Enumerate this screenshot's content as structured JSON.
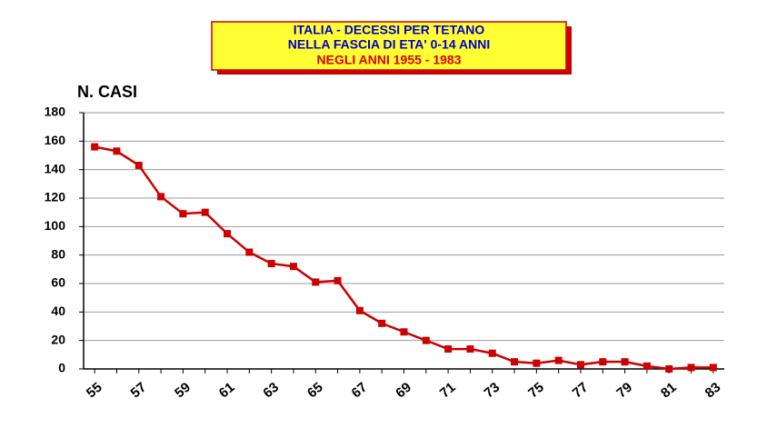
{
  "chart_data": {
    "type": "line",
    "title_lines": [
      "ITALIA - DECESSI PER TETANO",
      "NELLA FASCIA DI ETA' 0-14 ANNI",
      "NEGLI ANNI  1955 - 1983"
    ],
    "y_label": "N. CASI",
    "categories": [
      "55",
      null,
      "57",
      null,
      "59",
      null,
      "61",
      null,
      "63",
      null,
      "65",
      null,
      "67",
      null,
      "69",
      null,
      "71",
      null,
      "73",
      null,
      "75",
      null,
      "77",
      null,
      "79",
      null,
      "81",
      null,
      "83"
    ],
    "values": [
      156,
      153,
      143,
      121,
      109,
      110,
      95,
      82,
      74,
      72,
      61,
      62,
      41,
      32,
      26,
      20,
      14,
      14,
      11,
      5,
      4,
      6,
      3,
      5,
      5,
      2,
      0,
      1,
      1
    ],
    "color": "#cc0000",
    "ylim": [
      0,
      180
    ],
    "yticks": [
      0,
      20,
      40,
      60,
      80,
      100,
      120,
      140,
      160,
      180
    ],
    "grid": true
  }
}
